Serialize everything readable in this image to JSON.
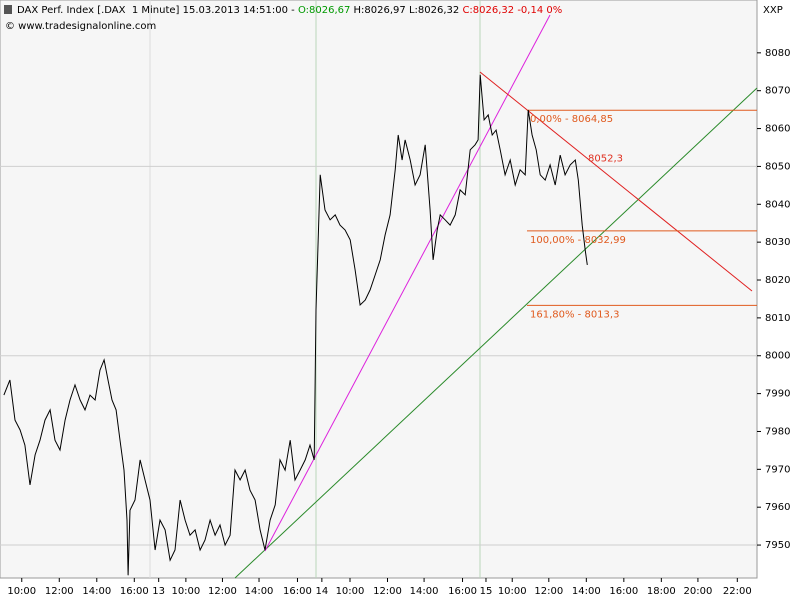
{
  "chart_data": {
    "type": "line",
    "title_parts": [
      {
        "text": "DAX Perf. Index [.DAX  1 Minute] 15.03.2013 14:51:00 - ",
        "color": "#000000"
      },
      {
        "text": "O:8026,67",
        "color": "#009900"
      },
      {
        "text": " H:8026,97 L:8026,32 ",
        "color": "#000000"
      },
      {
        "text": "C:8026,32 -0,14 0%",
        "color": "#e00000"
      }
    ],
    "subtitle": "© www.tradesignalonline.com",
    "symbol_label": "XXP",
    "x": [
      0.05,
      0.37,
      0.64,
      0.91,
      1.17,
      1.44,
      1.71,
      1.97,
      2.24,
      2.51,
      2.77,
      3.04,
      3.31,
      3.57,
      3.84,
      4.11,
      4.37,
      4.64,
      4.91,
      5.17,
      5.39,
      5.6,
      5.81,
      6.03,
      6.24,
      6.45,
      6.61,
      6.67,
      6.77,
      7.04,
      7.31,
      7.57,
      7.84,
      8.11,
      8.37,
      8.64,
      8.91,
      9.17,
      9.44,
      9.71,
      9.97,
      10.24,
      10.51,
      10.77,
      11.04,
      11.31,
      11.57,
      11.84,
      12.11,
      12.37,
      12.64,
      12.91,
      13.17,
      13.44,
      13.71,
      13.97,
      14.24,
      14.51,
      14.77,
      15.04,
      15.31,
      15.57,
      15.84,
      16.11,
      16.37,
      16.59,
      16.69,
      16.91,
      17.17,
      17.44,
      17.71,
      17.97,
      18.24,
      18.51,
      18.77,
      19.04,
      19.31,
      19.57,
      19.84,
      20.11,
      20.37,
      20.64,
      20.91,
      21.07,
      21.28,
      21.44,
      21.71,
      21.97,
      22.24,
      22.51,
      22.77,
      22.93,
      23.15,
      23.31,
      23.57,
      23.84,
      24.11,
      24.37,
      24.64,
      24.91,
      25.17,
      25.33,
      25.44,
      25.65,
      25.87,
      26.08,
      26.29,
      26.51,
      26.77,
      27.04,
      27.31,
      27.57,
      27.84,
      28.0,
      28.21,
      28.43,
      28.64,
      28.91,
      29.17,
      29.44,
      29.71,
      29.97,
      30.24,
      30.51,
      30.67,
      30.88,
      31.04,
      31.15
    ],
    "series": [
      {
        "name": "DAX",
        "color": "#000000",
        "values": [
          7989.6,
          7993.6,
          7983.0,
          7980.4,
          7976.4,
          7965.9,
          7973.8,
          7977.7,
          7983.0,
          7985.7,
          7977.7,
          7975.1,
          7983.0,
          7988.3,
          7992.3,
          7988.3,
          7985.7,
          7989.6,
          7988.3,
          7996.2,
          7998.9,
          7993.6,
          7988.3,
          7985.7,
          7977.7,
          7969.8,
          7956.6,
          7942.0,
          7959.2,
          7961.9,
          7972.5,
          7967.2,
          7961.9,
          7948.7,
          7956.6,
          7954.0,
          7946.0,
          7948.7,
          7961.9,
          7956.6,
          7952.6,
          7954.0,
          7948.7,
          7951.3,
          7956.6,
          7952.6,
          7955.3,
          7950.0,
          7952.6,
          7969.8,
          7967.2,
          7969.8,
          7964.5,
          7961.9,
          7954.0,
          7948.7,
          7956.6,
          7960.6,
          7972.5,
          7969.8,
          7977.7,
          7967.2,
          7969.8,
          7972.5,
          7976.4,
          7972.5,
          8012.1,
          8047.8,
          8038.5,
          8035.9,
          8037.2,
          8034.5,
          8033.2,
          8030.6,
          8022.7,
          8013.4,
          8014.7,
          8017.4,
          8021.3,
          8025.3,
          8031.9,
          8037.2,
          8049.1,
          8058.3,
          8051.7,
          8057.0,
          8051.7,
          8045.1,
          8047.8,
          8055.7,
          8038.5,
          8025.3,
          8033.2,
          8037.2,
          8035.9,
          8034.5,
          8037.2,
          8043.8,
          8042.5,
          8054.4,
          8055.7,
          8057.0,
          8074.2,
          8062.3,
          8063.6,
          8058.3,
          8059.6,
          8054.4,
          8047.8,
          8051.7,
          8045.1,
          8049.1,
          8047.8,
          8064.9,
          8058.3,
          8054.4,
          8047.8,
          8046.4,
          8050.4,
          8045.1,
          8053.0,
          8047.8,
          8050.4,
          8051.7,
          8046.4,
          8034.5,
          8027.9,
          8024.0
        ]
      }
    ],
    "annotations": [
      {
        "text": "0,00% - 8064,85",
        "value": 8064.85,
        "color": "#e05a1e",
        "line": true
      },
      {
        "text": "8052,3",
        "value": 8052.3,
        "color": "#e03020",
        "line": false
      },
      {
        "text": "100,00% - 8032,99",
        "value": 8032.99,
        "color": "#e05a1e",
        "line": true
      },
      {
        "text": "161,80% - 8013,3",
        "value": 8013.3,
        "color": "#e05a1e",
        "line": true
      }
    ],
    "xlim": [
      -0.16,
      40.2
    ],
    "ylim": [
      7941.3,
      8089.2
    ],
    "xticks": [
      {
        "value": 1.0,
        "label": "10:00"
      },
      {
        "value": 3.0,
        "label": "12:00"
      },
      {
        "value": 5.0,
        "label": "14:00"
      },
      {
        "value": 7.0,
        "label": "16:00"
      },
      {
        "value": 8.3,
        "label": "13"
      },
      {
        "value": 9.75,
        "label": "10:00"
      },
      {
        "value": 11.7,
        "label": "12:00"
      },
      {
        "value": 13.65,
        "label": "14:00"
      },
      {
        "value": 15.7,
        "label": "16:00"
      },
      {
        "value": 17.0,
        "label": "14"
      },
      {
        "value": 18.5,
        "label": "10:00"
      },
      {
        "value": 20.5,
        "label": "12:00"
      },
      {
        "value": 22.45,
        "label": "14:00"
      },
      {
        "value": 24.5,
        "label": "16:00"
      },
      {
        "value": 25.75,
        "label": "15"
      },
      {
        "value": 27.15,
        "label": "10:00"
      },
      {
        "value": 29.1,
        "label": "12:00"
      },
      {
        "value": 31.1,
        "label": "14:00"
      },
      {
        "value": 33.1,
        "label": "16:00"
      },
      {
        "value": 35.1,
        "label": "18:00"
      },
      {
        "value": 37.05,
        "label": "20:00"
      },
      {
        "value": 39.15,
        "label": "22:00"
      }
    ],
    "yticks": [
      7950,
      7960,
      7970,
      7980,
      7990,
      8000,
      8010,
      8020,
      8030,
      8040,
      8050,
      8060,
      8070,
      8080
    ],
    "grid_values": [
      7950,
      8000,
      8050
    ]
  }
}
